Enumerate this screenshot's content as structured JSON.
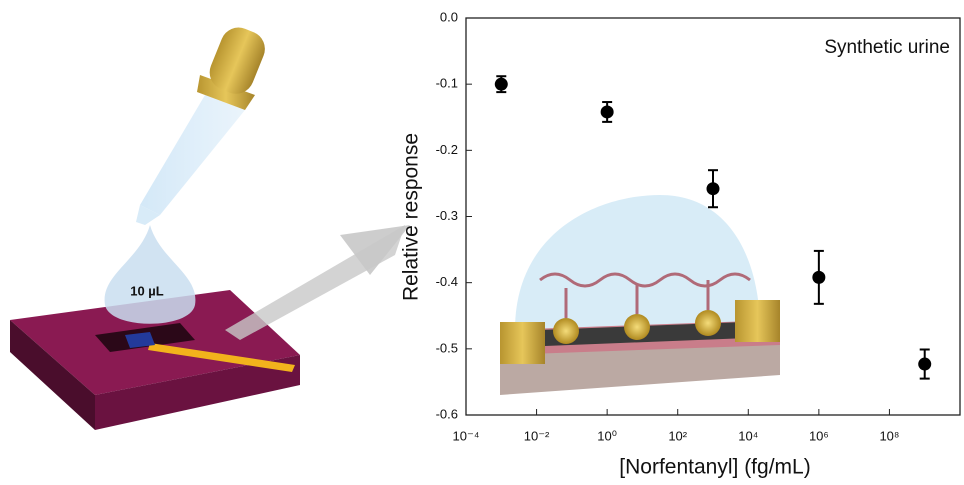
{
  "chart_data": {
    "type": "scatter",
    "x_label": "[Norfentanyl] (fg/mL)",
    "y_label": "Relative response",
    "annotations": [
      "Synthetic urine",
      "10 µL"
    ],
    "log_x": true,
    "xlim": [
      0.0001,
      10000000000
    ],
    "xticks": [
      {
        "value": 0.0001,
        "label": "10⁻⁴"
      },
      {
        "value": 0.01,
        "label": "10⁻²"
      },
      {
        "value": 1,
        "label": "10⁰"
      },
      {
        "value": 100,
        "label": "10²"
      },
      {
        "value": 10000,
        "label": "10⁴"
      },
      {
        "value": 1000000,
        "label": "10⁶"
      },
      {
        "value": 100000000,
        "label": "10⁸"
      }
    ],
    "ylim": [
      -0.6,
      0
    ],
    "yticks": [
      {
        "value": 0,
        "label": "0.0"
      },
      -0.1,
      -0.2,
      -0.3,
      -0.4,
      -0.5,
      -0.6
    ],
    "series": [
      {
        "color": "#000000",
        "x": [
          0.001,
          1,
          1000,
          1000000,
          1000000000
        ],
        "values": [
          -0.1,
          -0.142,
          -0.258,
          -0.392,
          -0.523
        ],
        "errors": [
          0.012,
          0.015,
          0.028,
          0.04,
          0.022
        ]
      }
    ]
  }
}
